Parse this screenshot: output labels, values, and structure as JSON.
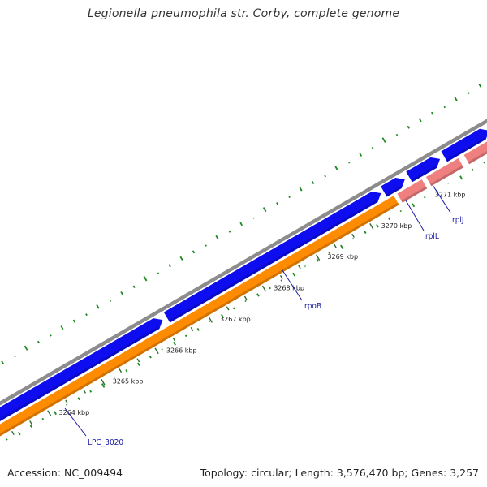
{
  "title": "Legionella pneumophila str. Corby, complete genome",
  "accession": "Accession: NC_009494",
  "summary": "Topology: circular; Length: 3,576,470 bp; Genes: 3,257",
  "colors": {
    "backbone": "#8c8c8c",
    "forward_cds": "#0d0df0",
    "reverse_cds": "#ff8c00",
    "rna": "#f08080",
    "gc_ticks": "#1f8a1f",
    "label_line": "#1a1aa6",
    "scale_tick": "#2e6b2e"
  },
  "scale_ticks": [
    "3264 kbp",
    "3265 kbp",
    "3266 kbp",
    "3267 kbp",
    "3268 kbp",
    "3269 kbp",
    "3270 kbp",
    "3271 kbp"
  ],
  "gene_labels": [
    "LPC_3020",
    "rpoB",
    "rplL",
    "rplJ"
  ],
  "features": {
    "forward": [
      "CDS",
      "CDS",
      "CDS",
      "CDS",
      "CDS"
    ],
    "reverse": [
      "CDS",
      "rRNA",
      "rRNA",
      "rRNA"
    ]
  }
}
